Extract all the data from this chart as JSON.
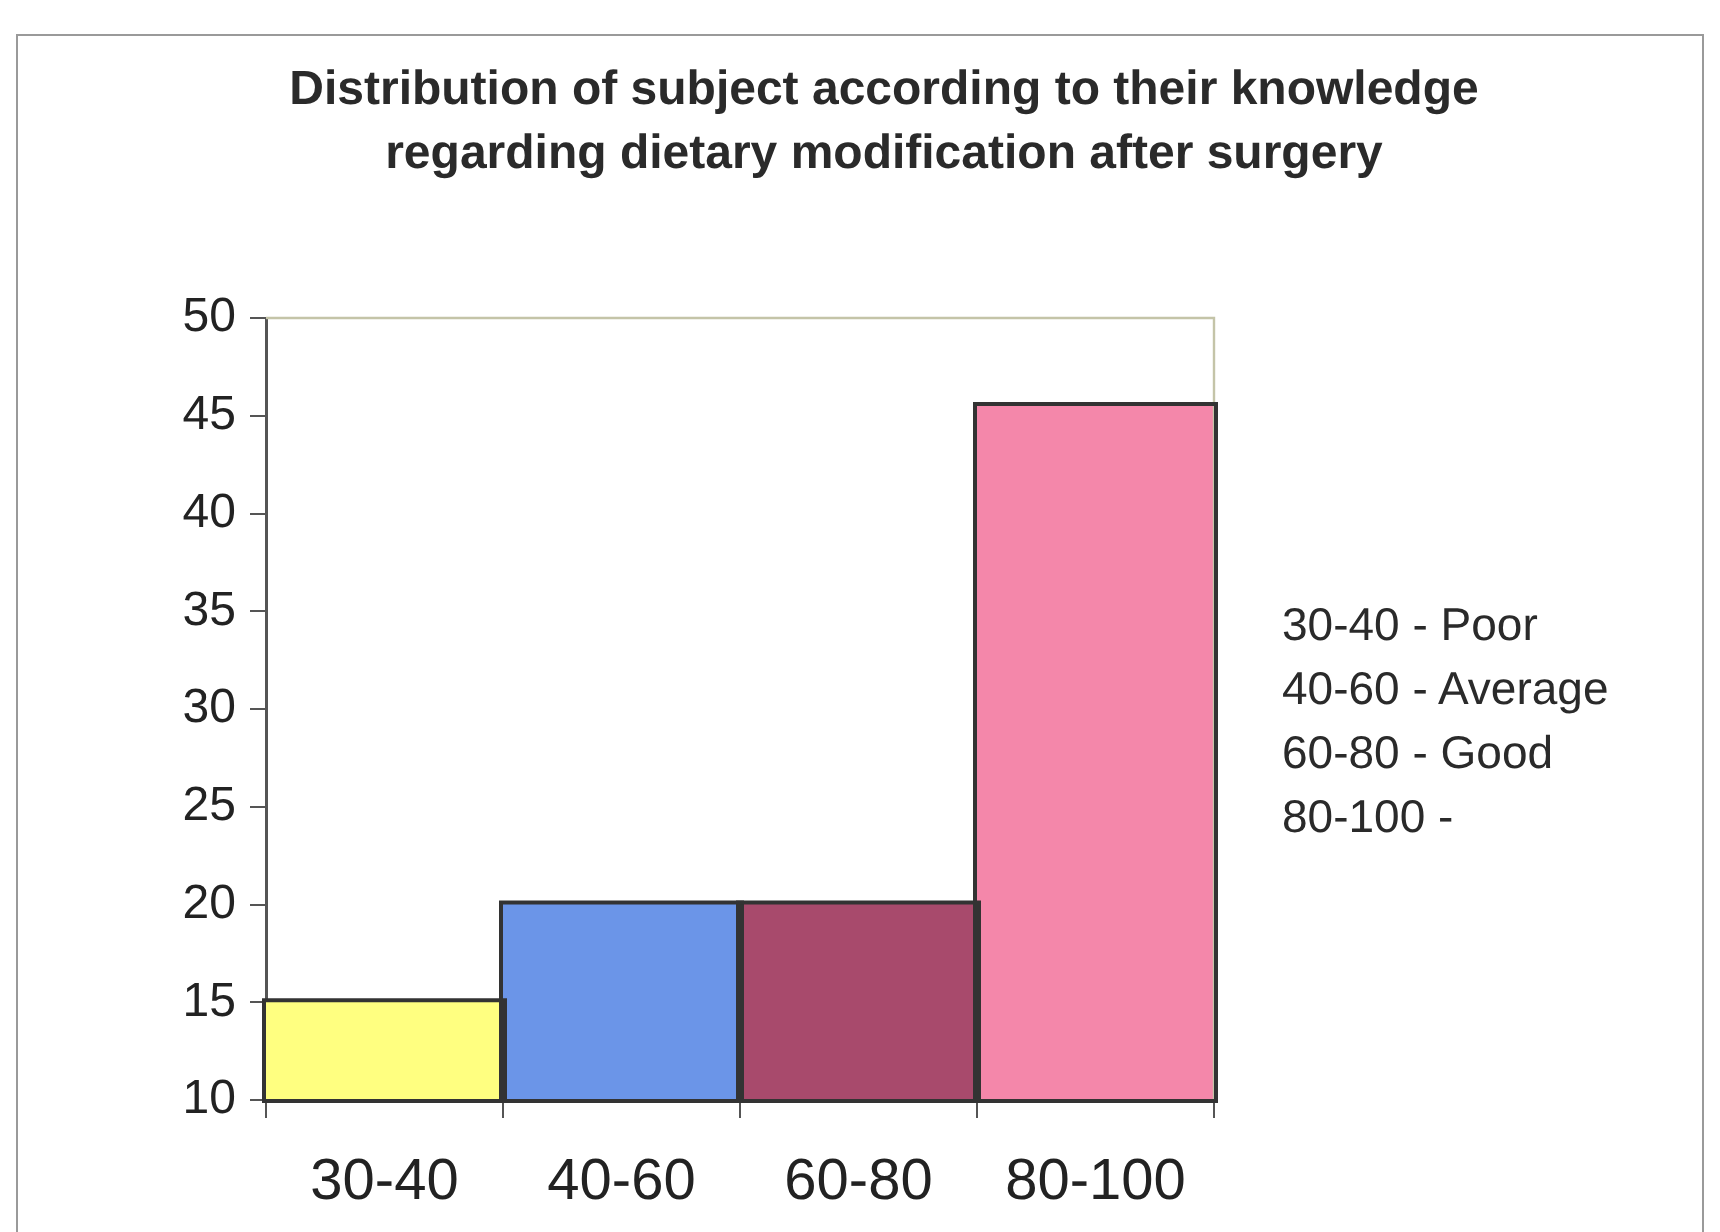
{
  "chart_data": {
    "type": "bar",
    "title": "Distribution of subject according to their knowledge regarding dietary modification after surgery",
    "categories": [
      "30-40",
      "40-60",
      "60-80",
      "80-100"
    ],
    "values": [
      15,
      20,
      20,
      45.5
    ],
    "colors": [
      "#ffff80",
      "#6b95e8",
      "#a84a6c",
      "#f487aa"
    ],
    "ylim": [
      10,
      50
    ],
    "yticks": [
      10,
      15,
      20,
      25,
      30,
      35,
      40,
      45,
      50
    ],
    "annotations": [
      "30-40 - Poor",
      "40-60 - Average",
      "60-80 - Good",
      "80-100 -"
    ]
  }
}
